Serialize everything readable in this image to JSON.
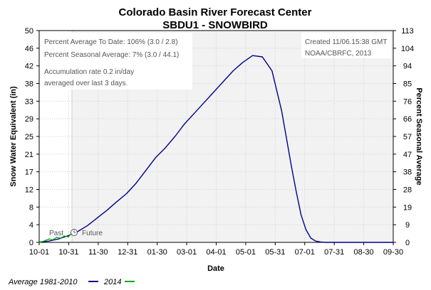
{
  "chart_data": {
    "type": "line",
    "title": "Colorado Basin River Forecast Center",
    "subtitle": "SBDU1 - SNOWBIRD",
    "xlabel": "Date",
    "ylabel_left": "Snow Water Equivalent (in)",
    "ylabel_right": "Percent Seasonal Average",
    "x_ticks": [
      "10-01",
      "10-31",
      "11-30",
      "12-31",
      "01-30",
      "03-01",
      "04-01",
      "05-01",
      "05-31",
      "07-01",
      "07-31",
      "08-30",
      "09-30"
    ],
    "y_left_ticks": [
      "0",
      "4",
      "8",
      "12",
      "17",
      "21",
      "25",
      "29",
      "33",
      "38",
      "42",
      "46",
      "50"
    ],
    "y_right_ticks": [
      "0",
      "9",
      "19",
      "28",
      "38",
      "47",
      "57",
      "66",
      "76",
      "85",
      "94",
      "104",
      "113"
    ],
    "ylim_left": [
      0,
      50
    ],
    "ylim_right": [
      0,
      113
    ],
    "xlim_days": [
      0,
      365
    ],
    "past_future_split_day": 37,
    "past_label": "Past",
    "future_label": "Future",
    "info_box": {
      "line1": "Percent Average To Date: 106% (3.0 / 2.8)",
      "line2": "Percent Seasonal Average: 7% (3.0 / 44.1)",
      "line3": "Accumulation rate 0.2 in/day",
      "line4": "averaged over last 3 days."
    },
    "created_box": {
      "line1": "Created  11/06.15:38 GMT",
      "line2": "NOAA/CBRFC, 2013"
    },
    "legend": {
      "items": [
        {
          "label": "Average 1981-2010",
          "color": "#00008b"
        },
        {
          "label": "2014",
          "color": "#00aa00"
        }
      ]
    },
    "series": [
      {
        "name": "Average 1981-2010",
        "color": "#00008b",
        "x_days": [
          0,
          10,
          20,
          30,
          40,
          50,
          60,
          70,
          80,
          90,
          100,
          110,
          120,
          130,
          140,
          150,
          160,
          170,
          180,
          190,
          200,
          210,
          220,
          230,
          240,
          250,
          255,
          260,
          265,
          270,
          275,
          280,
          285,
          290,
          295,
          300,
          310,
          320,
          330,
          340,
          350,
          360,
          365
        ],
        "values": [
          0.1,
          0.3,
          0.8,
          1.6,
          2.6,
          4.0,
          5.8,
          7.6,
          9.6,
          11.5,
          14.0,
          17.0,
          20.0,
          22.3,
          25.0,
          28.0,
          30.5,
          33.0,
          35.5,
          38.0,
          40.5,
          42.5,
          44.1,
          43.8,
          40.5,
          31.0,
          24.5,
          18.0,
          12.0,
          6.5,
          3.0,
          1.0,
          0.3,
          0.1,
          0.0,
          0.0,
          0.0,
          0.0,
          0.0,
          0.0,
          0.0,
          0.0,
          0.0
        ]
      },
      {
        "name": "2014",
        "color": "#00aa00",
        "x_days": [
          0,
          5,
          10,
          14,
          18,
          22,
          26,
          30,
          33,
          35,
          37
        ],
        "values": [
          0.0,
          0.3,
          0.8,
          0.6,
          1.2,
          1.0,
          1.5,
          1.3,
          2.0,
          2.7,
          3.0
        ]
      }
    ]
  }
}
